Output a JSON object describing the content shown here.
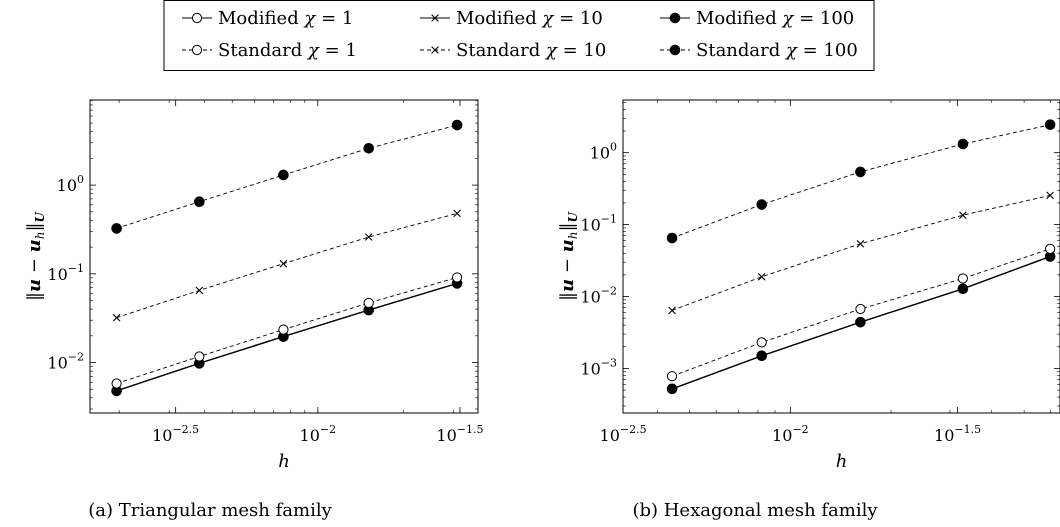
{
  "legend": {
    "entries": [
      {
        "series": "Modified",
        "chi": "1",
        "dashed": false,
        "marker": "open-circle"
      },
      {
        "series": "Modified",
        "chi": "10",
        "dashed": false,
        "marker": "cross"
      },
      {
        "series": "Modified",
        "chi": "100",
        "dashed": false,
        "marker": "filled-circle"
      },
      {
        "series": "Standard",
        "chi": "1",
        "dashed": true,
        "marker": "open-circle"
      },
      {
        "series": "Standard",
        "chi": "10",
        "dashed": true,
        "marker": "cross"
      },
      {
        "series": "Standard",
        "chi": "100",
        "dashed": true,
        "marker": "filled-circle"
      }
    ]
  },
  "chart_data": [
    {
      "type": "line",
      "log_scale": {
        "x": true,
        "y": true
      },
      "caption": "(a) Triangular mesh family",
      "xlabel": "h",
      "ylabel": "‖u − u_h‖_U",
      "x_ticks": [
        {
          "base": "10",
          "exp": "−2.5",
          "value": 0.003162
        },
        {
          "base": "10",
          "exp": "−2",
          "value": 0.01
        },
        {
          "base": "10",
          "exp": "−1.5",
          "value": 0.03162
        }
      ],
      "y_ticks": [
        {
          "base": "10",
          "exp": "−2",
          "value": 0.01
        },
        {
          "base": "10",
          "exp": "−1",
          "value": 0.1
        },
        {
          "base": "10",
          "exp": "0",
          "value": 1
        }
      ],
      "xlim": [
        0.00158,
        0.0366
      ],
      "ylim": [
        0.0027,
        9.1
      ],
      "x": [
        0.00196,
        0.00383,
        0.00757,
        0.0151,
        0.0309
      ],
      "series": [
        {
          "values": [
            0.0048,
            0.0098,
            0.0196,
            0.039,
            0.078
          ],
          "dashed": false,
          "marker": "open-circle"
        },
        {
          "values": [
            0.0048,
            0.0098,
            0.0196,
            0.039,
            0.078
          ],
          "dashed": false,
          "marker": "cross"
        },
        {
          "values": [
            0.0048,
            0.0098,
            0.0196,
            0.039,
            0.078
          ],
          "dashed": false,
          "marker": "filled-circle"
        },
        {
          "values": [
            0.0058,
            0.0117,
            0.0235,
            0.047,
            0.091
          ],
          "dashed": true,
          "marker": "open-circle"
        },
        {
          "values": [
            0.032,
            0.065,
            0.13,
            0.26,
            0.48
          ],
          "dashed": true,
          "marker": "cross"
        },
        {
          "values": [
            0.325,
            0.65,
            1.3,
            2.6,
            4.75
          ],
          "dashed": true,
          "marker": "filled-circle"
        }
      ]
    },
    {
      "type": "line",
      "log_scale": {
        "x": true,
        "y": true
      },
      "caption": "(b) Hexagonal mesh family",
      "xlabel": "h",
      "ylabel": "‖u − u_h‖_U",
      "x_ticks": [
        {
          "base": "10",
          "exp": "−2.5",
          "value": 0.003162
        },
        {
          "base": "10",
          "exp": "−2",
          "value": 0.01
        },
        {
          "base": "10",
          "exp": "−1.5",
          "value": 0.03162
        }
      ],
      "y_ticks": [
        {
          "base": "10",
          "exp": "−3",
          "value": 0.001
        },
        {
          "base": "10",
          "exp": "−2",
          "value": 0.01
        },
        {
          "base": "10",
          "exp": "−1",
          "value": 0.1
        },
        {
          "base": "10",
          "exp": "0",
          "value": 1
        }
      ],
      "xlim": [
        0.00316,
        0.064
      ],
      "ylim": [
        0.00024,
        5.4
      ],
      "x": [
        0.00443,
        0.00821,
        0.0162,
        0.0328,
        0.0598
      ],
      "series": [
        {
          "values": [
            0.00052,
            0.0015,
            0.0044,
            0.0128,
            0.036
          ],
          "dashed": false,
          "marker": "open-circle"
        },
        {
          "values": [
            0.00052,
            0.0015,
            0.0044,
            0.0128,
            0.036
          ],
          "dashed": false,
          "marker": "cross"
        },
        {
          "values": [
            0.00052,
            0.0015,
            0.0044,
            0.0128,
            0.036
          ],
          "dashed": false,
          "marker": "filled-circle"
        },
        {
          "values": [
            0.00078,
            0.0023,
            0.0067,
            0.0178,
            0.046
          ],
          "dashed": true,
          "marker": "open-circle"
        },
        {
          "values": [
            0.0064,
            0.0188,
            0.054,
            0.135,
            0.255
          ],
          "dashed": true,
          "marker": "cross"
        },
        {
          "values": [
            0.065,
            0.19,
            0.54,
            1.32,
            2.45
          ],
          "dashed": true,
          "marker": "filled-circle"
        }
      ]
    }
  ]
}
